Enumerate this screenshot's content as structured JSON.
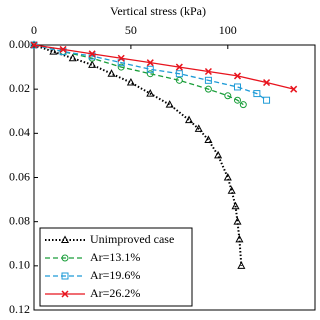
{
  "chart_data": {
    "type": "line",
    "x_label": "Vertical stress (kPa)",
    "xlim": [
      0,
      145
    ],
    "xticks": [
      0,
      50,
      100
    ],
    "ylim": [
      0,
      0.12
    ],
    "y_inverted": true,
    "yticks": [
      {
        "value": 0,
        "label": "0.00"
      },
      0.02,
      0.04,
      0.06,
      0.08,
      {
        "value": 0.1,
        "label": "0.10"
      },
      0.12
    ],
    "legend": "lower left",
    "series": [
      {
        "name": "Unimproved case",
        "color": "#000000",
        "dash": "dotted",
        "marker": "triangle",
        "x": [
          0,
          10,
          20,
          30,
          40,
          50,
          60,
          70,
          80,
          85,
          90,
          95,
          100,
          102,
          104,
          105,
          106,
          107
        ],
        "values": [
          0,
          0.003,
          0.006,
          0.009,
          0.013,
          0.017,
          0.022,
          0.027,
          0.034,
          0.038,
          0.043,
          0.05,
          0.06,
          0.066,
          0.073,
          0.08,
          0.088,
          0.1
        ]
      },
      {
        "name": "Ar=13.1%",
        "color": "#1a9e3a",
        "dash": "dashed",
        "marker": "circle",
        "x": [
          0,
          15,
          30,
          45,
          60,
          75,
          90,
          100,
          105,
          108
        ],
        "values": [
          0,
          0.003,
          0.006,
          0.01,
          0.013,
          0.016,
          0.02,
          0.023,
          0.025,
          0.027
        ]
      },
      {
        "name": "Ar=19.6%",
        "color": "#1e9bd7",
        "dash": "dashed",
        "marker": "square",
        "x": [
          0,
          15,
          30,
          45,
          60,
          75,
          90,
          105,
          115,
          120
        ],
        "values": [
          0,
          0.003,
          0.005,
          0.008,
          0.011,
          0.013,
          0.016,
          0.019,
          0.022,
          0.025
        ]
      },
      {
        "name": "Ar=26.2%",
        "color": "#e8141e",
        "dash": "solid",
        "marker": "x",
        "x": [
          0,
          15,
          30,
          45,
          60,
          75,
          90,
          105,
          120,
          134
        ],
        "values": [
          0,
          0.002,
          0.004,
          0.006,
          0.008,
          0.01,
          0.012,
          0.014,
          0.017,
          0.02
        ]
      }
    ]
  }
}
